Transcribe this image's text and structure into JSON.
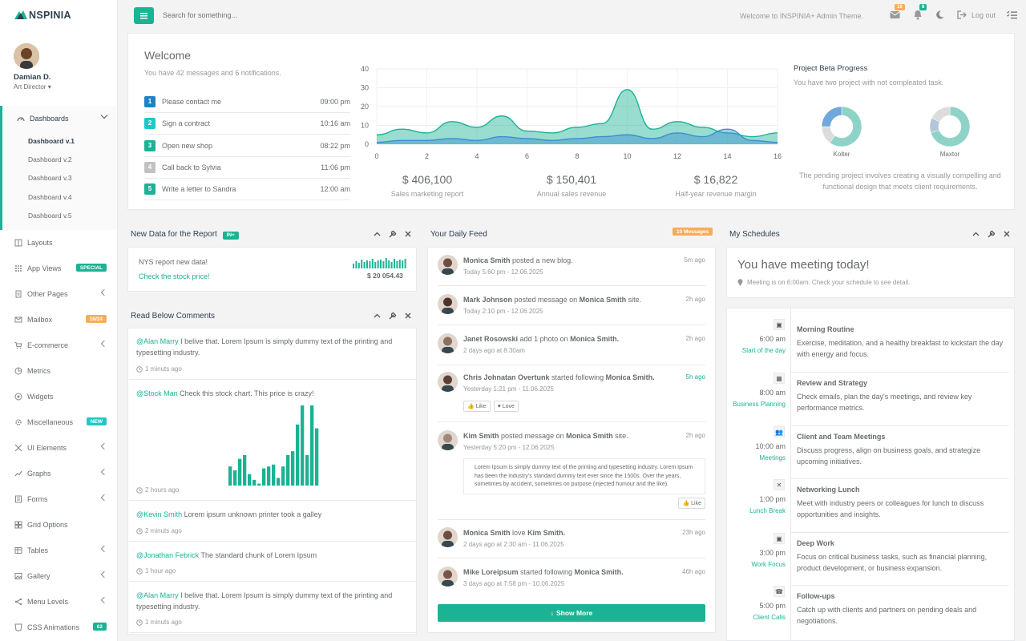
{
  "brand": {
    "name": "NSPINIA",
    "accent": "#1ab394"
  },
  "user": {
    "name": "Damian D.",
    "role": "Art Director"
  },
  "sidebar": {
    "dashboards": {
      "label": "Dashboards",
      "items": [
        "Dashboard v.1",
        "Dashboard v.2",
        "Dashboard v.3",
        "Dashboard v.4",
        "Dashboard v.5"
      ]
    },
    "items": [
      {
        "label": "Layouts",
        "icon": "layout-icon"
      },
      {
        "label": "App Views",
        "icon": "apps-icon",
        "badge": "SPECIAL",
        "badge_color": "#1ab394"
      },
      {
        "label": "Other Pages",
        "icon": "pages-icon",
        "arrow": true
      },
      {
        "label": "Mailbox",
        "icon": "mail-icon",
        "badge": "16/24",
        "badge_color": "#f8ac59"
      },
      {
        "label": "E-commerce",
        "icon": "cart-icon",
        "arrow": true
      },
      {
        "label": "Metrics",
        "icon": "pie-icon"
      },
      {
        "label": "Widgets",
        "icon": "widgets-icon"
      },
      {
        "label": "Miscellaneous",
        "icon": "gear-icon",
        "badge": "NEW",
        "badge_color": "#23c6c8"
      },
      {
        "label": "UI Elements",
        "icon": "tools-icon",
        "arrow": true
      },
      {
        "label": "Graphs",
        "icon": "chart-icon",
        "arrow": true
      },
      {
        "label": "Forms",
        "icon": "form-icon",
        "arrow": true
      },
      {
        "label": "Grid Options",
        "icon": "grid-icon"
      },
      {
        "label": "Tables",
        "icon": "table-icon",
        "arrow": true
      },
      {
        "label": "Gallery",
        "icon": "gallery-icon",
        "arrow": true
      },
      {
        "label": "Menu Levels",
        "icon": "share-icon",
        "arrow": true
      },
      {
        "label": "CSS Animations",
        "icon": "css-icon",
        "badge": "62",
        "badge_color": "#1ab394"
      }
    ]
  },
  "topbar": {
    "search_placeholder": "Search for something...",
    "welcome": "Welcome to INSPINIA+ Admin Theme.",
    "mail_count": "16",
    "bell_count": "8",
    "logout": "Log out"
  },
  "welcome": {
    "title": "Welcome",
    "subtitle": "You have 42 messages and 6 notifications.",
    "todos": [
      {
        "n": "1",
        "text": "Please contact me",
        "time": "09:00 pm",
        "color": "#1c84c6"
      },
      {
        "n": "2",
        "text": "Sign a contract",
        "time": "10:16 am",
        "color": "#23c6c8"
      },
      {
        "n": "3",
        "text": "Open new shop",
        "time": "08:22 pm",
        "color": "#1ab394"
      },
      {
        "n": "4",
        "text": "Call back to Sylvia",
        "time": "11:06 pm",
        "color": "#c2c2c2"
      },
      {
        "n": "5",
        "text": "Write a letter to Sandra",
        "time": "12:00 am",
        "color": "#1ab394"
      }
    ]
  },
  "chart_data": {
    "type": "area",
    "x": [
      0,
      1,
      2,
      3,
      4,
      5,
      6,
      7,
      8,
      9,
      10,
      11,
      12,
      13,
      14,
      15,
      16
    ],
    "xticks": [
      "0",
      "2",
      "4",
      "6",
      "8",
      "10",
      "12",
      "14",
      "16"
    ],
    "yticks": [
      "40",
      "30",
      "20",
      "10",
      "0"
    ],
    "xlim": [
      0,
      16
    ],
    "ylim": [
      0,
      40
    ],
    "series": [
      {
        "color": "#1ab394",
        "values": [
          5,
          8,
          6,
          12,
          9,
          15,
          7,
          6,
          9,
          11,
          29,
          8,
          12,
          9,
          6,
          4,
          6
        ]
      },
      {
        "color": "#3b8fd1",
        "values": [
          1,
          2,
          2,
          3,
          2,
          4,
          3,
          2,
          3,
          4,
          5,
          3,
          6,
          4,
          8,
          2,
          1
        ]
      }
    ]
  },
  "stats": [
    {
      "value": "$ 406,100",
      "label": "Sales marketing report"
    },
    {
      "value": "$ 150,401",
      "label": "Annual sales revenue"
    },
    {
      "value": "$ 16,822",
      "label": "Half-year revenue margin"
    }
  ],
  "project": {
    "title": "Project Beta Progress",
    "subtitle": "You have two project with not compleated task.",
    "donuts": [
      {
        "name": "Kolter",
        "values": [
          60,
          15,
          25
        ],
        "colors": [
          "#8fd3c8",
          "#dcdcdc",
          "#6fa8dc"
        ]
      },
      {
        "name": "Maxtor",
        "values": [
          70,
          12,
          18
        ],
        "colors": [
          "#8fd3c8",
          "#b3c6d9",
          "#dcdcdc"
        ]
      }
    ],
    "description": "The pending project involves creating a visually compelling and functional design that meets client requirements."
  },
  "report": {
    "title": "New Data for the Report",
    "badge": "IN+",
    "subtitle": "NYS report new data!",
    "link": "Check the stock price!",
    "amount": "$ 20 054.43",
    "spark": [
      6,
      9,
      7,
      11,
      8,
      10,
      9,
      12,
      8,
      10,
      11,
      9,
      13,
      10,
      8,
      12,
      9,
      11,
      10,
      12
    ]
  },
  "comments": {
    "title": "Read Below Comments",
    "items": [
      {
        "user": "@Alan Marry",
        "text": "I belive that. Lorem Ipsum is simply dummy text of the printing and typesetting industry.",
        "time": "1 minuts ago"
      },
      {
        "user": "@Stock Man",
        "text": "Check this stock chart. This price is crazy!",
        "time": "2 hours ago"
      },
      {
        "user": "@Kevin Smith",
        "text": "Lorem ipsum unknown printer took a galley",
        "time": "2 minuts ago"
      },
      {
        "user": "@Jonathan Febrick",
        "text": "The standard chunk of Lorem Ipsum",
        "time": "1 hour ago"
      },
      {
        "user": "@Alan Marry",
        "text": "I belive that. Lorem Ipsum is simply dummy text of the printing and typesetting industry.",
        "time": "1 minuts ago"
      }
    ],
    "bars": [
      10,
      8,
      14,
      16,
      6,
      3,
      1,
      9,
      10,
      11,
      4,
      10,
      16,
      18,
      32,
      42,
      16,
      42,
      30
    ]
  },
  "feed": {
    "title": "Your Daily Feed",
    "badge": "10 Messages",
    "items": [
      {
        "name": "Monica Smith",
        "action": "posted a new blog.",
        "target": "",
        "suffix": "",
        "sub": "Today 5:60 pm - 12.06.2025",
        "ago": "5m ago"
      },
      {
        "name": "Mark Johnson",
        "action": "posted message on",
        "target": "Monica Smith",
        "suffix": " site.",
        "sub": "Today 2:10 pm - 12.06.2025",
        "ago": "2h ago"
      },
      {
        "name": "Janet Rosowski",
        "action": "add 1 photo on",
        "target": "Monica Smith.",
        "suffix": "",
        "sub": "2 days ago at 8:30am",
        "ago": "2h ago"
      },
      {
        "name": "Chris Johnatan Overtunk",
        "action": "started following",
        "target": "Monica Smith.",
        "suffix": "",
        "sub": "Yesterday 1:21 pm - 11.06.2025",
        "ago": "5h ago"
      },
      {
        "name": "Kim Smith",
        "action": "posted message on",
        "target": "Monica Smith",
        "suffix": " site.",
        "sub": "Yesterday 5:20 pm - 12.06.2025",
        "ago": "2h ago"
      },
      {
        "name": "Monica Smith",
        "action": "love",
        "target": "Kim Smith.",
        "suffix": "",
        "sub": "2 days ago at 2:30 am - 11.06.2025",
        "ago": "23h ago"
      },
      {
        "name": "Mike Loreipsum",
        "action": "started following",
        "target": "Monica Smith.",
        "suffix": "",
        "sub": "3 days ago at 7:58 pm - 10.06.2025",
        "ago": "46h ago"
      }
    ],
    "like": "Like",
    "love": "Love",
    "quote": "Lorem Ipsum is simply dummy text of the printing and typesetting industry. Lorem Ipsum has been the industry's standard dummy text ever since the 1500s. Over the years, sometimes by accident, sometimes on purpose (injected humour and the like).",
    "show_more": "Show More"
  },
  "schedules": {
    "title": "My Schedules",
    "headline": "You have meeting today!",
    "note": "Meeting is on 6:00am. Check your schedule to see detail.",
    "items": [
      {
        "time": "6:00 am",
        "label": "Start of the day",
        "title": "Morning Routine",
        "desc": "Exercise, meditation, and a healthy breakfast to kickstart the day with energy and focus.",
        "icon": "briefcase-icon"
      },
      {
        "time": "8:00 am",
        "label": "Business Planning",
        "title": "Review and Strategy",
        "desc": "Check emails, plan the day's meetings, and review key performance metrics.",
        "icon": "calendar-icon"
      },
      {
        "time": "10:00 am",
        "label": "Meetings",
        "title": "Client and Team Meetings",
        "desc": "Discuss progress, align on business goals, and strategize upcoming initiatives.",
        "icon": "users-icon"
      },
      {
        "time": "1:00 pm",
        "label": "Lunch Break",
        "title": "Networking Lunch",
        "desc": "Meet with industry peers or colleagues for lunch to discuss opportunities and insights.",
        "icon": "cutlery-icon"
      },
      {
        "time": "3:00 pm",
        "label": "Work Focus",
        "title": "Deep Work",
        "desc": "Focus on critical business tasks, such as financial planning, product development, or business expansion.",
        "icon": "briefcase-icon"
      },
      {
        "time": "5:00 pm",
        "label": "Client Calls",
        "title": "Follow-ups",
        "desc": "Catch up with clients and partners on pending deals and negotiations.",
        "icon": "phone-icon"
      }
    ]
  }
}
